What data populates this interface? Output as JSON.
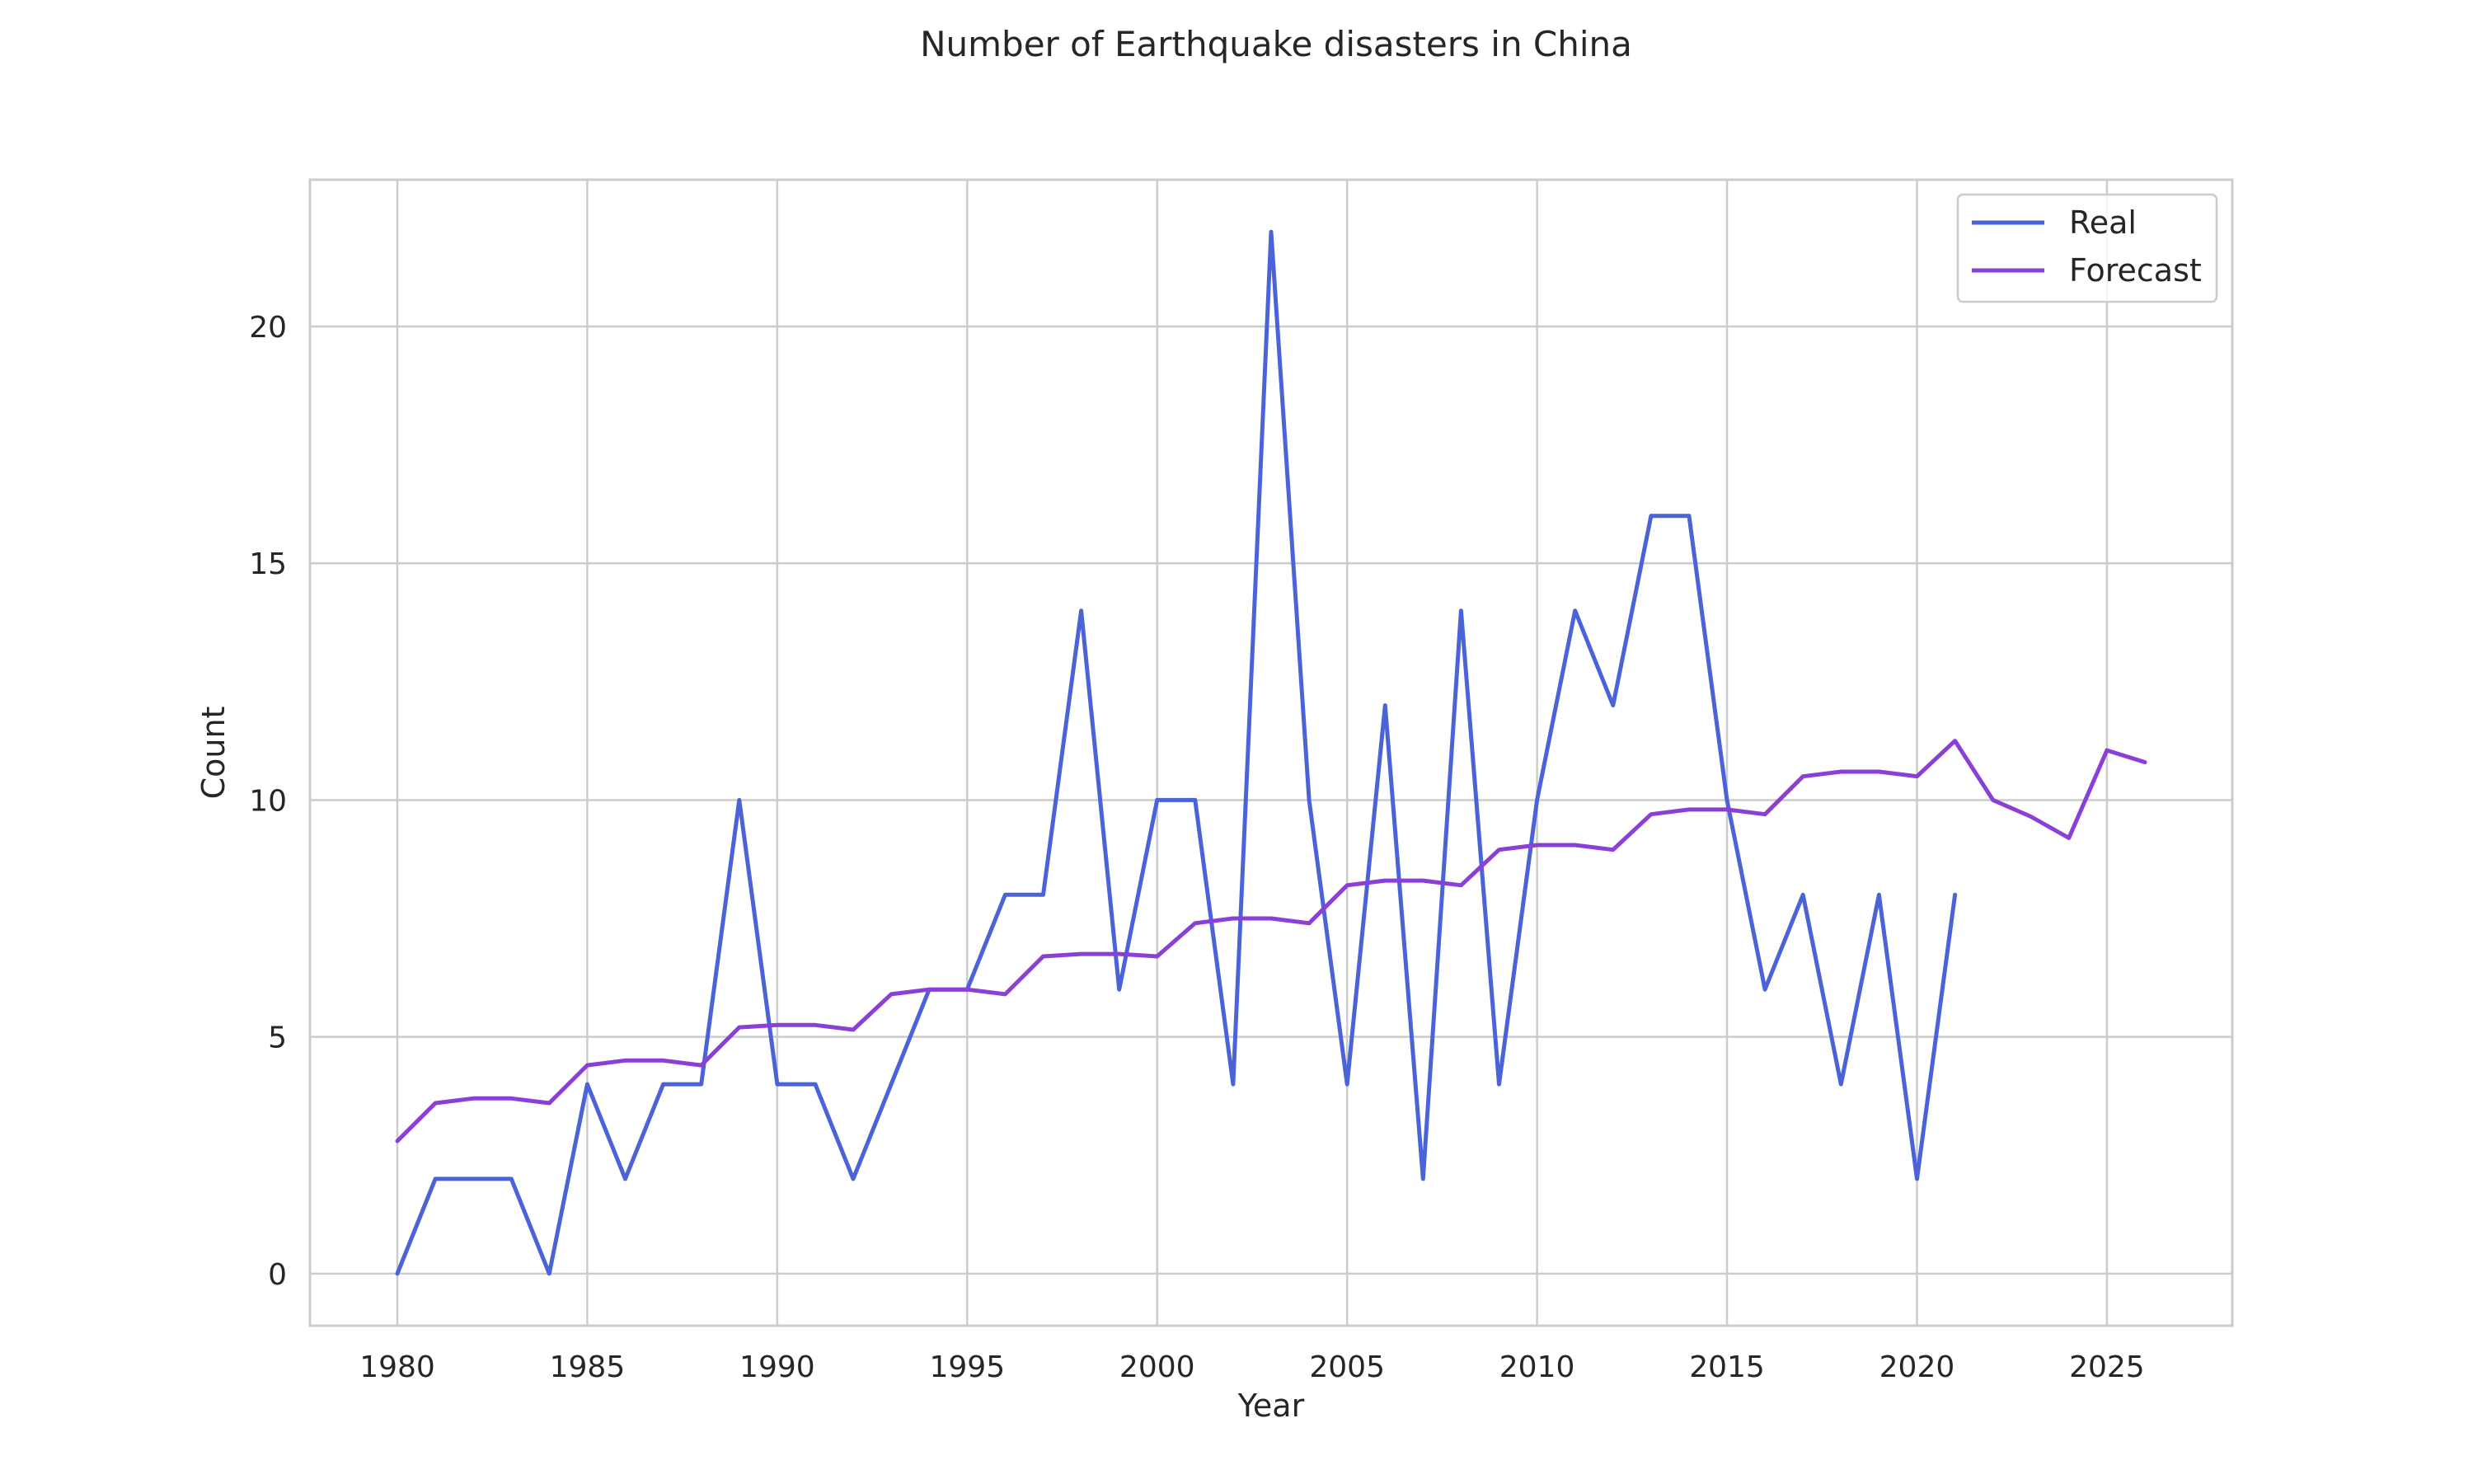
{
  "chart_data": {
    "type": "line",
    "title": "Number of Earthquake disasters in China",
    "xlabel": "Year",
    "ylabel": "Count",
    "xlim": [
      1977.7,
      2028.3
    ],
    "ylim": [
      -1.1,
      23.1
    ],
    "xticks": [
      1980,
      1985,
      1990,
      1995,
      2000,
      2005,
      2010,
      2015,
      2020,
      2025
    ],
    "yticks": [
      0,
      5,
      10,
      15,
      20
    ],
    "grid": true,
    "legend_position": "top-right",
    "series": [
      {
        "name": "Real",
        "color": "#4a63d8",
        "x": [
          1980,
          1981,
          1982,
          1983,
          1984,
          1985,
          1986,
          1987,
          1988,
          1989,
          1990,
          1991,
          1992,
          1993,
          1994,
          1995,
          1996,
          1997,
          1998,
          1999,
          2000,
          2001,
          2002,
          2003,
          2004,
          2005,
          2006,
          2007,
          2008,
          2009,
          2010,
          2011,
          2012,
          2013,
          2014,
          2015,
          2016,
          2017,
          2018,
          2019,
          2020,
          2021
        ],
        "y": [
          0,
          2,
          2,
          2,
          0,
          4,
          2,
          4,
          4,
          10,
          4,
          4,
          2,
          4,
          6,
          6,
          8,
          8,
          14,
          6,
          10,
          10,
          4,
          22,
          10,
          4,
          12,
          2,
          14,
          4,
          10,
          14,
          12,
          16,
          16,
          10,
          6,
          8,
          4,
          8,
          2,
          8
        ]
      },
      {
        "name": "Forecast",
        "color": "#8a3fd6",
        "x": [
          1980,
          1981,
          1982,
          1983,
          1984,
          1985,
          1986,
          1987,
          1988,
          1989,
          1990,
          1991,
          1992,
          1993,
          1994,
          1995,
          1996,
          1997,
          1998,
          1999,
          2000,
          2001,
          2002,
          2003,
          2004,
          2005,
          2006,
          2007,
          2008,
          2009,
          2010,
          2011,
          2012,
          2013,
          2014,
          2015,
          2016,
          2017,
          2018,
          2019,
          2020,
          2021,
          2022,
          2023,
          2024,
          2025,
          2026
        ],
        "y": [
          2.8,
          3.6,
          3.7,
          3.7,
          3.6,
          4.4,
          4.5,
          4.5,
          4.4,
          5.2,
          5.25,
          5.25,
          5.15,
          5.9,
          6.0,
          6.0,
          5.9,
          6.7,
          6.75,
          6.75,
          6.7,
          7.4,
          7.5,
          7.5,
          7.4,
          8.2,
          8.3,
          8.3,
          8.2,
          8.95,
          9.05,
          9.05,
          8.95,
          9.7,
          9.8,
          9.8,
          9.7,
          10.5,
          10.6,
          10.6,
          10.5,
          11.25,
          10.0,
          9.65,
          9.2,
          11.05,
          10.8
        ]
      }
    ]
  }
}
